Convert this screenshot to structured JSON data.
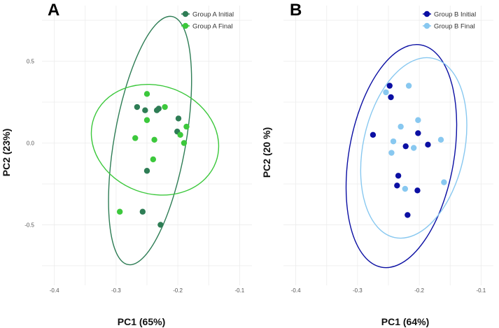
{
  "chart_data": [
    {
      "type": "scatter",
      "panel_label": "A",
      "xlabel": "PC1 (65%)",
      "ylabel": "PC2 (23%)",
      "xlim": [
        -0.42,
        -0.08
      ],
      "ylim": [
        -0.87,
        0.84
      ],
      "x_ticks": [
        -0.4,
        -0.3,
        -0.2,
        -0.1
      ],
      "x_tick_labels": [
        "-0.4",
        "-0.3",
        "-0.2",
        "-0.1"
      ],
      "y_ticks": [
        -0.5,
        0.0,
        0.5
      ],
      "y_tick_labels": [
        "-0.5",
        "0.0",
        "0.5"
      ],
      "grid": true,
      "legend_position": "top-right",
      "series": [
        {
          "name": "Group A Initial",
          "color": "#2e7d55",
          "points": [
            [
              -0.266,
              0.22
            ],
            [
              -0.253,
              0.2
            ],
            [
              -0.234,
              0.2
            ],
            [
              -0.231,
              0.21
            ],
            [
              -0.199,
              0.15
            ],
            [
              -0.201,
              0.07
            ],
            [
              -0.25,
              -0.17
            ],
            [
              -0.257,
              -0.42
            ],
            [
              -0.228,
              -0.5
            ]
          ],
          "ellipse": {
            "cx": -0.245,
            "cy": 0.015,
            "rx": 0.058,
            "ry": 0.77,
            "angle_deg": 10
          }
        },
        {
          "name": "Group A Final",
          "color": "#3cc83c",
          "points": [
            [
              -0.25,
              0.3
            ],
            [
              -0.221,
              0.22
            ],
            [
              -0.25,
              0.14
            ],
            [
              -0.269,
              0.03
            ],
            [
              -0.238,
              0.02
            ],
            [
              -0.186,
              0.1
            ],
            [
              -0.196,
              0.05
            ],
            [
              -0.19,
              0.0
            ],
            [
              -0.24,
              -0.1
            ],
            [
              -0.294,
              -0.42
            ]
          ],
          "ellipse": {
            "cx": -0.237,
            "cy": 0.02,
            "rx": 0.105,
            "ry": 0.33,
            "angle_deg": 20
          }
        }
      ]
    },
    {
      "type": "scatter",
      "panel_label": "B",
      "xlabel": "PC1 (64%)",
      "ylabel": "PC2 (20 %)",
      "xlim": [
        -0.42,
        -0.08
      ],
      "ylim": [
        -0.87,
        0.84
      ],
      "x_ticks": [
        -0.4,
        -0.3,
        -0.2,
        -0.1
      ],
      "x_tick_labels": [
        "-0.4",
        "-0.3",
        "-0.2",
        "-0.1"
      ],
      "y_ticks": [
        -0.5,
        0.0,
        0.5
      ],
      "y_tick_labels": [
        "",
        "",
        ""
      ],
      "grid": true,
      "legend_position": "top-right",
      "series": [
        {
          "name": "Group B Initial",
          "color": "#0b0fa3",
          "points": [
            [
              -0.248,
              0.35
            ],
            [
              -0.246,
              0.28
            ],
            [
              -0.275,
              0.05
            ],
            [
              -0.222,
              -0.02
            ],
            [
              -0.202,
              0.06
            ],
            [
              -0.186,
              -0.01
            ],
            [
              -0.234,
              -0.2
            ],
            [
              -0.236,
              -0.26
            ],
            [
              -0.203,
              -0.29
            ],
            [
              -0.219,
              -0.44
            ]
          ],
          "ellipse": {
            "cx": -0.229,
            "cy": -0.08,
            "rx": 0.085,
            "ry": 0.69,
            "angle_deg": 10
          }
        },
        {
          "name": "Group B Final",
          "color": "#88c8f0",
          "points": [
            [
              -0.254,
              0.31
            ],
            [
              -0.217,
              0.35
            ],
            [
              -0.23,
              0.1
            ],
            [
              -0.202,
              0.14
            ],
            [
              -0.242,
              0.01
            ],
            [
              -0.209,
              -0.03
            ],
            [
              -0.165,
              0.02
            ],
            [
              -0.245,
              -0.06
            ],
            [
              -0.16,
              -0.24
            ],
            [
              -0.223,
              -0.28
            ]
          ],
          "ellipse": {
            "cx": -0.209,
            "cy": -0.03,
            "rx": 0.082,
            "ry": 0.56,
            "angle_deg": 12
          }
        }
      ]
    }
  ]
}
